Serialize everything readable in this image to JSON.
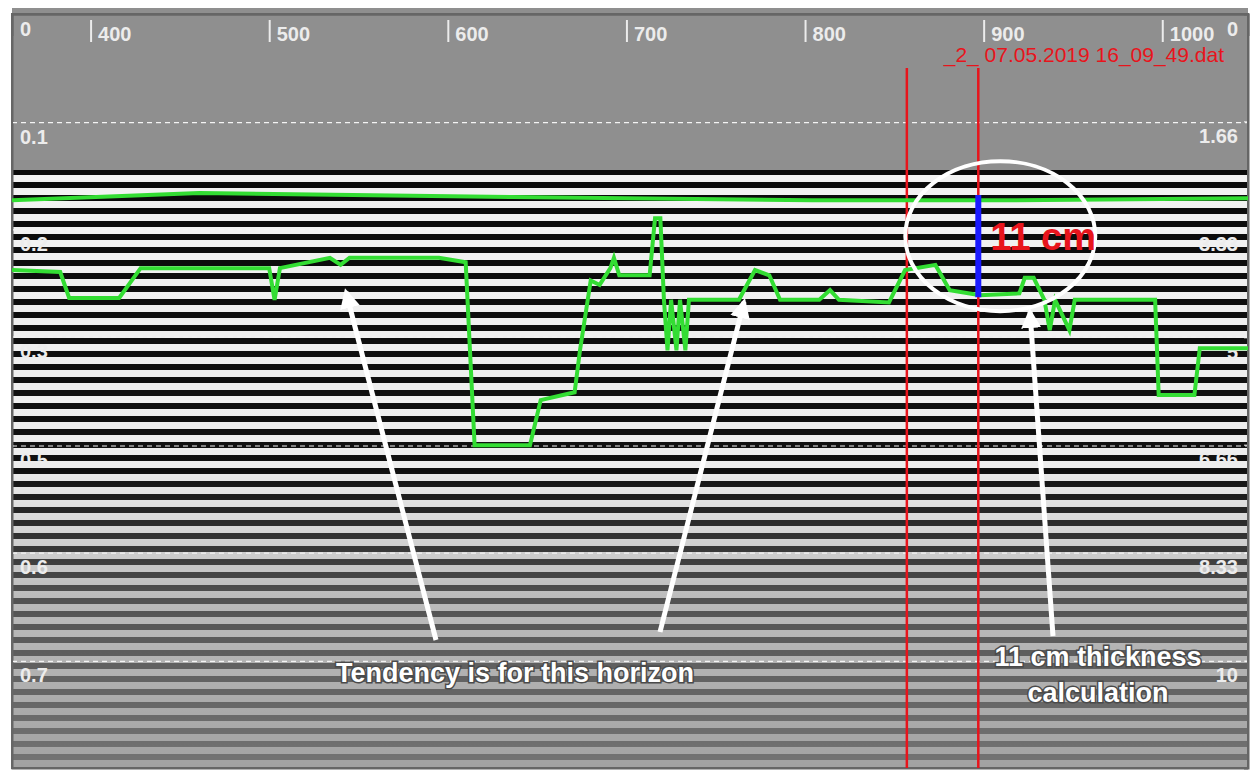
{
  "chart_data": {
    "type": "line",
    "file_label": "_2_ 07.05.2019 16_09_49.dat",
    "xlim": [
      356,
      1048
    ],
    "xticks": [
      400,
      500,
      600,
      700,
      800,
      900,
      1000
    ],
    "ylim": [
      0,
      0.816
    ],
    "yticks": [
      0,
      {
        "value": 0.117,
        "label": "0.1"
      },
      {
        "value": 0.233,
        "label": "0.2"
      },
      {
        "value": 0.349,
        "label": "0.3"
      },
      {
        "value": 0.467,
        "label": "0.5"
      },
      {
        "value": 0.583,
        "label": "0.6"
      },
      {
        "value": 0.7,
        "label": "0.7"
      }
    ],
    "y2lim": [
      0,
      11.66
    ],
    "y2ticks": [
      0,
      1.66,
      3.33,
      5,
      6.66,
      8.33,
      10
    ],
    "grid": true,
    "series": [
      {
        "color": "#33dd33",
        "axis": "y2",
        "x": [
          356,
          461,
          636,
          804,
          916,
          1048
        ],
        "values": [
          2.88,
          2.77,
          2.83,
          2.88,
          2.88,
          2.85
        ]
      },
      {
        "color": "#33dd33",
        "axis": "y2",
        "x": [
          356,
          383,
          388,
          416,
          428,
          500,
          503,
          506,
          534,
          540,
          545,
          595,
          610,
          615,
          646,
          652,
          671,
          674,
          680,
          685,
          691,
          693,
          696,
          713,
          716,
          719,
          721,
          723,
          725,
          728,
          730,
          733,
          735,
          763,
          772,
          780,
          786,
          808,
          814,
          819,
          847,
          856,
          873,
          881,
          898,
          920,
          923,
          928,
          934,
          937,
          940,
          948,
          951,
          996,
          998,
          1018,
          1021,
          1048
        ],
        "values": [
          3.96,
          3.99,
          4.39,
          4.39,
          3.93,
          3.93,
          4.42,
          3.93,
          3.77,
          3.88,
          3.77,
          3.77,
          3.84,
          6.67,
          6.67,
          5.97,
          5.85,
          5.2,
          4.12,
          4.19,
          3.93,
          3.77,
          4.04,
          4.04,
          3.16,
          3.16,
          4.42,
          5.2,
          4.42,
          5.2,
          4.42,
          5.2,
          4.42,
          4.42,
          3.96,
          4.04,
          4.42,
          4.42,
          4.27,
          4.42,
          4.46,
          3.96,
          3.88,
          4.27,
          4.35,
          4.32,
          4.08,
          4.08,
          4.42,
          4.89,
          4.42,
          4.89,
          4.42,
          4.42,
          5.89,
          5.89,
          5.17,
          5.17
        ]
      }
    ],
    "vertical_lines": {
      "color": "#e8141c",
      "x": [
        857,
        897
      ]
    },
    "thickness": {
      "label": "11 cm",
      "color": "#1a1aff",
      "axis": "y2",
      "x": 897,
      "y": [
        2.8,
        4.38
      ]
    },
    "annotations": [
      {
        "text": "Tendency is for this horizon"
      },
      {
        "lines": [
          "11 cm thickness",
          "calculation"
        ]
      }
    ]
  }
}
